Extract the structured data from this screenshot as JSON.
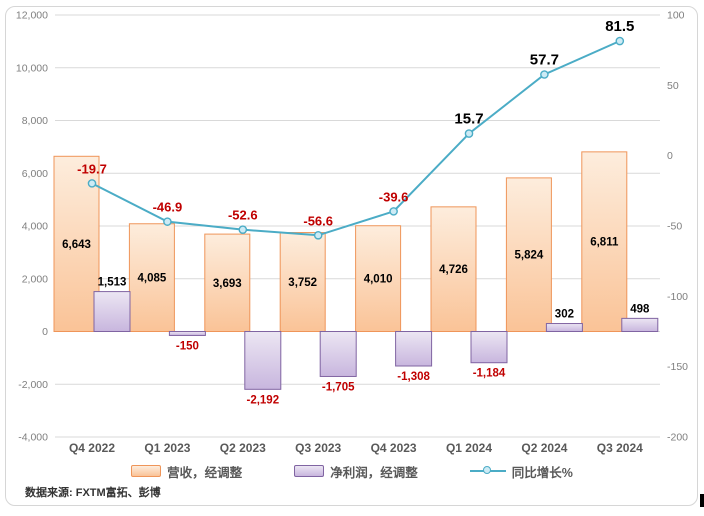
{
  "source_note": "数据来源: FXTM富拓、彭博",
  "chart_data": {
    "type": "combo-bar-line",
    "categories": [
      "Q4 2022",
      "Q1 2023",
      "Q2 2023",
      "Q3 2023",
      "Q4 2023",
      "Q1 2024",
      "Q2 2024",
      "Q3 2024"
    ],
    "series": [
      {
        "name": "营收，经调整",
        "type": "bar",
        "axis": "left",
        "values": [
          6643,
          4085,
          3693,
          3752,
          4010,
          4726,
          5824,
          6811
        ]
      },
      {
        "name": "净利润，经调整",
        "type": "bar",
        "axis": "left",
        "values": [
          1513,
          -150,
          -2192,
          -1705,
          -1308,
          -1184,
          302,
          498
        ]
      },
      {
        "name": "同比增长%",
        "type": "line",
        "axis": "right",
        "values": [
          -19.7,
          -46.9,
          -52.6,
          -56.6,
          -39.6,
          15.7,
          57.7,
          81.5
        ]
      }
    ],
    "left_axis": {
      "min": -4000,
      "max": 12000,
      "ticks": [
        12000,
        10000,
        8000,
        6000,
        4000,
        2000,
        0,
        -2000,
        -4000
      ]
    },
    "right_axis": {
      "min": -200,
      "max": 100,
      "ticks": [
        100,
        50,
        0,
        -50,
        -100,
        -150,
        -200
      ]
    },
    "grid": true,
    "legend_position": "bottom",
    "colors": {
      "revenue_fill_top": "#fdeddd",
      "revenue_fill_bottom": "#fac397",
      "revenue_border": "#ef9559",
      "profit_fill_top": "#ece6f3",
      "profit_fill_bottom": "#c8b6de",
      "profit_border": "#8064a2",
      "line": "#4bacc6",
      "marker_fill": "#cdebf5",
      "negative_label": "#c00000",
      "positive_label": "#000000",
      "gridline": "#d9d9d9",
      "axis_text": "#7f7f7f",
      "category_text": "#595959"
    }
  }
}
